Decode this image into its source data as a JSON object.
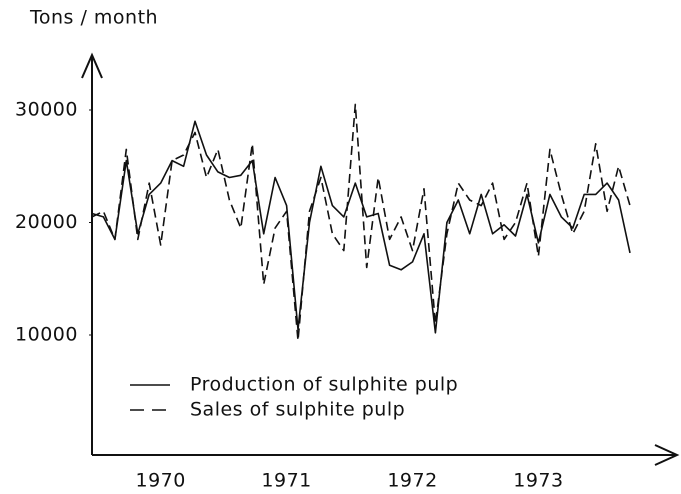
{
  "chart_data": {
    "type": "line",
    "y_label": "Tons / month",
    "categories": [
      null,
      null,
      null,
      null,
      null,
      null,
      "1970",
      null,
      null,
      null,
      null,
      null,
      null,
      null,
      null,
      null,
      null,
      "1971",
      null,
      null,
      null,
      null,
      null,
      null,
      null,
      null,
      null,
      null,
      "1972",
      null,
      null,
      null,
      null,
      null,
      null,
      null,
      null,
      null,
      null,
      "1973",
      null,
      null,
      null,
      null,
      null,
      null,
      null,
      null
    ],
    "series": [
      {
        "name": "Production of sulphite pulp",
        "color": "#111111",
        "style": "solid",
        "values": [
          20800,
          20500,
          18500,
          25500,
          19000,
          22500,
          23500,
          25500,
          25000,
          29000,
          26000,
          24500,
          24000,
          24200,
          25500,
          19000,
          24000,
          21500,
          10500,
          20000,
          25000,
          21500,
          20500,
          23500,
          20500,
          20800,
          16200,
          15800,
          16500,
          19000,
          10200,
          20000,
          22000,
          19000,
          22500,
          19000,
          19800,
          18800,
          22500,
          18200,
          22500,
          20500,
          19500,
          22500,
          22500,
          23500,
          22000,
          17300
        ]
      },
      {
        "name": "Sales of sulphite pulp",
        "color": "#111111",
        "style": "dashed",
        "values": [
          20500,
          21000,
          18500,
          26500,
          18500,
          23500,
          18000,
          25500,
          26000,
          28000,
          24000,
          26500,
          22000,
          19500,
          27000,
          14500,
          19500,
          21000,
          9500,
          21000,
          24000,
          19000,
          17500,
          30500,
          16000,
          24000,
          18500,
          20500,
          17500,
          23000,
          11000,
          19000,
          23500,
          22000,
          21500,
          23500,
          18500,
          20000,
          23500,
          17000,
          26500,
          22500,
          19000,
          21000,
          27000,
          21000,
          25000,
          21500
        ]
      }
    ],
    "ylim": [
      0,
      35000
    ],
    "yticks": [
      10000,
      20000,
      30000
    ],
    "grid": false
  }
}
